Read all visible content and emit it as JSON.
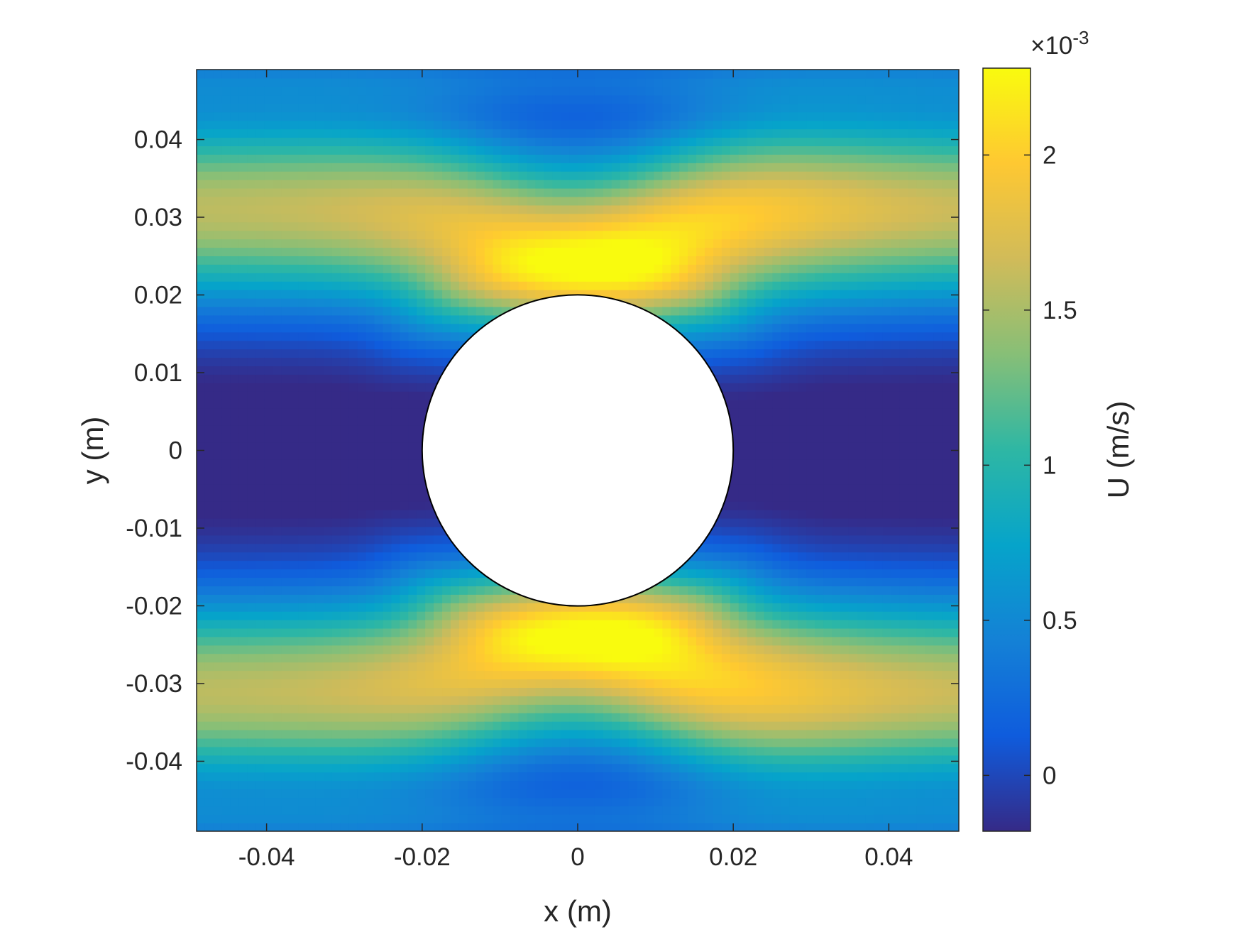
{
  "chart_data": {
    "type": "heatmap",
    "title": "",
    "xlabel": "x (m)",
    "ylabel": "y (m)",
    "xlim": [
      -0.049,
      0.049
    ],
    "ylim": [
      -0.049,
      0.049
    ],
    "x_ticks": [
      -0.04,
      -0.02,
      0,
      0.02,
      0.04
    ],
    "x_tick_labels": [
      "-0.04",
      "-0.02",
      "0",
      "0.02",
      "0.04"
    ],
    "y_ticks": [
      0.04,
      0.03,
      0.02,
      0.01,
      0,
      -0.01,
      -0.02,
      -0.03,
      -0.04
    ],
    "y_tick_labels": [
      "0.04",
      "0.03",
      "0.02",
      "0.01",
      "0",
      "-0.01",
      "-0.02",
      "-0.03",
      "-0.04"
    ],
    "obstacle": {
      "shape": "circle",
      "center": [
        0,
        0
      ],
      "radius": 0.02
    },
    "colorbar": {
      "label": "U (m/s)",
      "exponent_label": "×10",
      "exponent_power": "-3",
      "range": [
        -0.00018,
        0.00228
      ],
      "ticks": [
        0,
        0.0005,
        0.001,
        0.0015,
        0.002
      ],
      "tick_labels": [
        "0",
        "0.5",
        "1",
        "1.5",
        "2"
      ],
      "colormap": "parula",
      "colormap_stops": [
        "#352a87",
        "#0f5cdd",
        "#1481d6",
        "#06a4ca",
        "#2eb7a4",
        "#87bf77",
        "#d1bb59",
        "#fec832",
        "#f9fb0e"
      ]
    },
    "field_description_points": [
      {
        "x": 0.008,
        "y": 0.032,
        "value": 0.00228
      },
      {
        "x": 0.008,
        "y": -0.032,
        "value": 0.00228
      },
      {
        "x": -0.045,
        "y": 0.03,
        "value": 0.0019
      },
      {
        "x": -0.045,
        "y": -0.03,
        "value": 0.0019
      },
      {
        "x": -0.045,
        "y": 0,
        "value": -0.0001
      },
      {
        "x": 0.04,
        "y": 0,
        "value": -0.00018
      },
      {
        "x": 0,
        "y": 0.048,
        "value": 0.0004
      },
      {
        "x": 0,
        "y": -0.048,
        "value": 0.0004
      }
    ]
  }
}
